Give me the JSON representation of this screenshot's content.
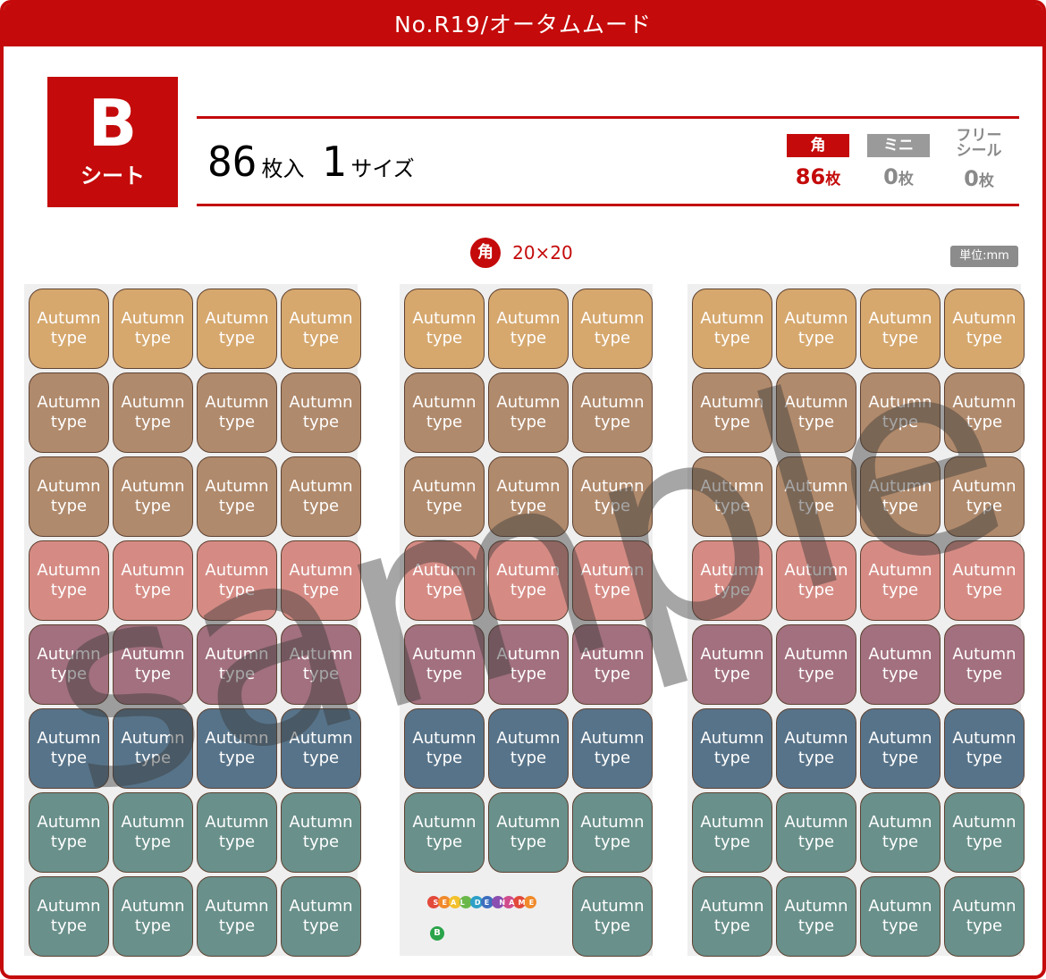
{
  "header": {
    "title": "No.R19/オータムムード"
  },
  "sheet": {
    "letter": "B",
    "word": "シート"
  },
  "summary": {
    "count": "86",
    "count_unit": "枚入",
    "sizes": "1",
    "sizes_unit": "サイズ"
  },
  "types": [
    {
      "label": "角",
      "count": "86",
      "unit": "枚",
      "badge_color": "#c40a0a",
      "count_color": "#c40a0a"
    },
    {
      "label": "ミニ",
      "count": "0",
      "unit": "枚",
      "badge_color": "#9a9a9a",
      "count_color": "#8a8a8a"
    },
    {
      "label_lines": [
        "フリー",
        "シール"
      ],
      "count": "0",
      "unit": "枚",
      "badge_color": null,
      "count_color": "#8a8a8a"
    }
  ],
  "size": {
    "icon": "角",
    "text": "20×20"
  },
  "unit_badge": "単位:mm",
  "sticker_text": {
    "line1": "Autumn",
    "line2": "type"
  },
  "row_colors": [
    "#d6a86e",
    "#b08a6c",
    "#b08a6c",
    "#d58b84",
    "#a2707f",
    "#577389",
    "#69908a",
    "#69908a"
  ],
  "panels": [
    {
      "cols": 4,
      "rows": [
        4,
        4,
        4,
        4,
        4,
        4,
        4,
        4
      ]
    },
    {
      "cols": 3,
      "rows": [
        3,
        3,
        3,
        3,
        3,
        3,
        3,
        1
      ]
    },
    {
      "cols": 4,
      "rows": [
        4,
        4,
        4,
        4,
        4,
        4,
        4,
        4
      ]
    }
  ],
  "watermark": "sample",
  "brand": {
    "logo": "SEAL DE NAME",
    "mark": "B"
  },
  "colors": {
    "accent": "#c40a0a",
    "gray_badge": "#8c8c8c"
  }
}
